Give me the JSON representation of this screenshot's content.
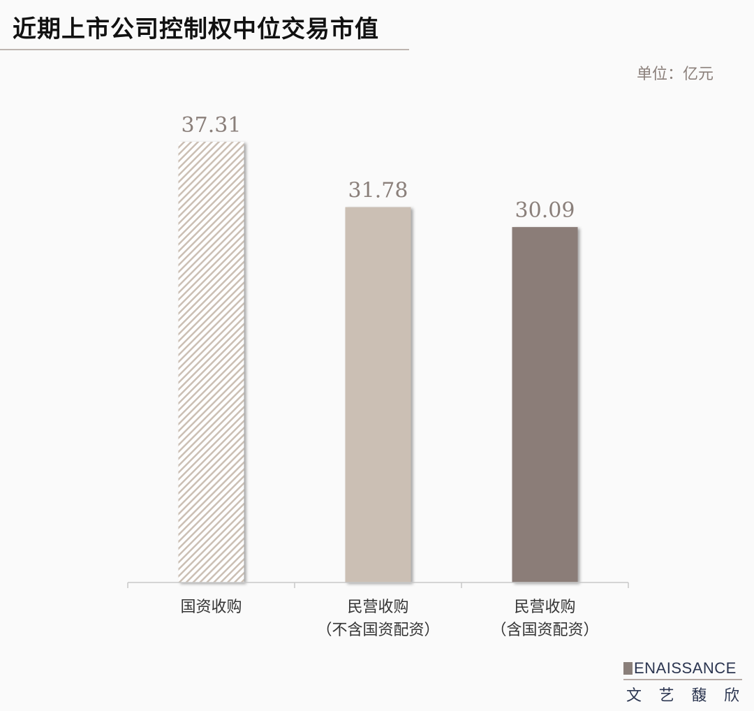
{
  "chart_data": {
    "type": "bar",
    "title": "近期上市公司控制权中位交易市值",
    "unit_label": "单位：亿元",
    "categories": [
      [
        "国资收购"
      ],
      [
        "民营收购",
        "（不含国资配资）"
      ],
      [
        "民营收购",
        "（含国资配资）"
      ]
    ],
    "values": [
      37.31,
      31.78,
      30.09
    ],
    "value_labels": [
      "37.31",
      "31.78",
      "30.09"
    ],
    "bar_styles": [
      "hatched",
      "solid",
      "solid"
    ],
    "colors": [
      "#cbbfb4",
      "#cbbfb4",
      "#8b7d78"
    ],
    "label_color": "#8a7f7a",
    "ylim": [
      0,
      37.31
    ],
    "grid": false,
    "legend": "none"
  },
  "logo": {
    "en": "ENAISSANCE",
    "cn": [
      "文",
      "艺",
      "馥",
      "欣"
    ],
    "full": "RENAISSANCE 文艺馥欣"
  }
}
